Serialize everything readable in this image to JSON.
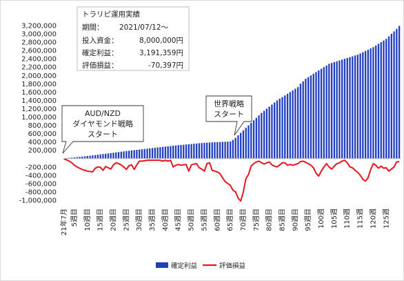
{
  "info_box": {
    "title": "トラリピ運用実績",
    "period_label": "期間：",
    "period_value": "2021/07/12～",
    "invest_label": "投入資金：",
    "invest_value": "8,000,000円",
    "profit_label": "確定利益：",
    "profit_value": "3,191,359円",
    "unrealized_label": "評価損益：",
    "unrealized_value": "-70,397円"
  },
  "callouts": [
    {
      "lines": [
        "AUD/NZD",
        "ダイヤモンド戦略",
        "スタート"
      ]
    },
    {
      "lines": [
        "世界戦略",
        "スタート"
      ]
    }
  ],
  "colors": {
    "profit_bar": "#1f3fbf",
    "unrealized_line": "#e8141c",
    "axis": "#bfbfbf"
  },
  "chart_data": {
    "type": "bar",
    "ylim": [
      -1000000,
      3200000
    ],
    "yticks": [
      3200000,
      3000000,
      2800000,
      2600000,
      2400000,
      2200000,
      2000000,
      1800000,
      1600000,
      1400000,
      1200000,
      1000000,
      800000,
      600000,
      400000,
      200000,
      0,
      -200000,
      -400000,
      -600000,
      -800000,
      -1000000
    ],
    "ytick_labels": [
      "3,200,000",
      "3,000,000",
      "2,800,000",
      "2,600,000",
      "2,400,000",
      "2,200,000",
      "2,000,000",
      "1,800,000",
      "1,600,000",
      "1,400,000",
      "1,200,000",
      "1,000,000",
      "800,000",
      "600,000",
      "400,000",
      "200,000",
      "",
      "-200,000",
      "-400,000",
      "-600,000",
      "-800,000",
      "-1,000,000"
    ],
    "xtick_labels": [
      "21年7月",
      "5週目",
      "10週目",
      "15週目",
      "20週目",
      "25週目",
      "30週目",
      "35週目",
      "40週目",
      "45週目",
      "50週目",
      "55週目",
      "60週目",
      "65週目",
      "70週目",
      "75週目",
      "80週目",
      "85週目",
      "90週目",
      "95週目",
      "100週",
      "105週",
      "110週",
      "115週",
      "120週",
      "125週"
    ],
    "grid": false,
    "legend_position": "bottom",
    "series": [
      {
        "name": "確定利益",
        "kind": "bar",
        "values": [
          5000,
          11000,
          17000,
          23000,
          29000,
          35000,
          42000,
          49000,
          56000,
          63000,
          70000,
          78000,
          86000,
          94000,
          102000,
          110000,
          118000,
          126000,
          134000,
          142000,
          150000,
          158000,
          166000,
          174000,
          182000,
          190000,
          198000,
          205000,
          212000,
          219000,
          226000,
          233000,
          240000,
          247000,
          254000,
          261000,
          268000,
          275000,
          282000,
          289000,
          296000,
          303000,
          310000,
          316000,
          322000,
          328000,
          334000,
          340000,
          346000,
          352000,
          358000,
          364000,
          370000,
          375000,
          380000,
          384000,
          388000,
          391000,
          394000,
          397000,
          400000,
          403000,
          406000,
          409000,
          412000,
          450000,
          500000,
          560000,
          620000,
          680000,
          740000,
          800000,
          860000,
          920000,
          980000,
          1040000,
          1100000,
          1150000,
          1200000,
          1250000,
          1300000,
          1350000,
          1400000,
          1440000,
          1480000,
          1520000,
          1560000,
          1600000,
          1640000,
          1680000,
          1720000,
          1800000,
          1860000,
          1920000,
          1960000,
          2000000,
          2040000,
          2080000,
          2120000,
          2160000,
          2200000,
          2240000,
          2280000,
          2300000,
          2320000,
          2340000,
          2360000,
          2380000,
          2400000,
          2420000,
          2440000,
          2460000,
          2480000,
          2500000,
          2530000,
          2560000,
          2590000,
          2620000,
          2650000,
          2680000,
          2720000,
          2760000,
          2800000,
          2840000,
          2880000,
          2940000,
          3000000,
          3060000,
          3120000,
          3191359
        ]
      },
      {
        "name": "評価損益",
        "kind": "line",
        "values": [
          -10000,
          -30000,
          -60000,
          -100000,
          -160000,
          -200000,
          -230000,
          -260000,
          -280000,
          -300000,
          -310000,
          -320000,
          -230000,
          -200000,
          -210000,
          -280000,
          -190000,
          -220000,
          -250000,
          -150000,
          -100000,
          -120000,
          -150000,
          -200000,
          -260000,
          -170000,
          -150000,
          -260000,
          -150000,
          -60000,
          -60000,
          -50000,
          -40000,
          -40000,
          -40000,
          -40000,
          -40000,
          -40000,
          -60000,
          -40000,
          -60000,
          -40000,
          -200000,
          -160000,
          -140000,
          -160000,
          -150000,
          -140000,
          -300000,
          -150000,
          -130000,
          -120000,
          -220000,
          -250000,
          -300000,
          -120000,
          -100000,
          -280000,
          -300000,
          -320000,
          -360000,
          -460000,
          -550000,
          -600000,
          -640000,
          -760000,
          -800000,
          -950000,
          -1020000,
          -800000,
          -480000,
          -380000,
          -180000,
          -120000,
          -80000,
          -60000,
          -100000,
          -130000,
          -100000,
          -80000,
          -150000,
          -180000,
          -200000,
          -150000,
          -100000,
          -100000,
          -160000,
          -140000,
          -160000,
          -140000,
          -120000,
          -70000,
          -60000,
          -90000,
          -120000,
          -160000,
          -220000,
          -350000,
          -420000,
          -300000,
          -200000,
          -120000,
          -200000,
          -250000,
          -180000,
          -120000,
          -100000,
          -60000,
          -40000,
          -100000,
          -200000,
          -220000,
          -280000,
          -330000,
          -400000,
          -500000,
          -540000,
          -460000,
          -260000,
          -120000,
          -160000,
          -230000,
          -180000,
          -230000,
          -220000,
          -300000,
          -250000,
          -200000,
          -80000,
          -70397
        ]
      }
    ]
  }
}
